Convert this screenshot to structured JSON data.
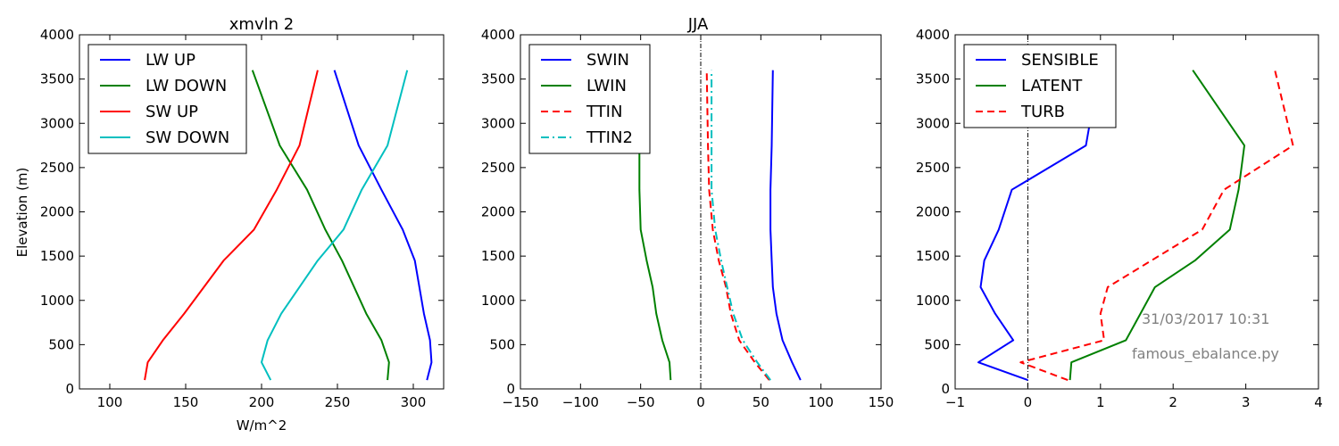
{
  "footer": {
    "timestamp": "31/03/2017 10:31",
    "script": "famous_ebalance.py"
  },
  "chart_data": [
    {
      "type": "line",
      "title": "xmvln 2",
      "xlabel": "W/m^2",
      "ylabel": "Elevation (m)",
      "xlim": [
        80,
        320
      ],
      "ylim": [
        0,
        4000
      ],
      "xticks": [
        100,
        150,
        200,
        250,
        300
      ],
      "yticks": [
        0,
        500,
        1000,
        1500,
        2000,
        2500,
        3000,
        3500,
        4000
      ],
      "legend": "top-left",
      "series": [
        {
          "name": "LW UP",
          "color": "#0000ff",
          "dash": "solid",
          "x": [
            309,
            312,
            311,
            307,
            301,
            293,
            279,
            264,
            248
          ],
          "y": [
            100,
            300,
            550,
            850,
            1450,
            1800,
            2250,
            2750,
            3600
          ]
        },
        {
          "name": "LW DOWN",
          "color": "#008000",
          "dash": "solid",
          "x": [
            283,
            284,
            279,
            269,
            253,
            242,
            230,
            212,
            194
          ],
          "y": [
            100,
            300,
            550,
            850,
            1450,
            1800,
            2250,
            2750,
            3600
          ]
        },
        {
          "name": "SW UP",
          "color": "#ff0000",
          "dash": "solid",
          "x": [
            123,
            125,
            135,
            149,
            175,
            195,
            210,
            225,
            237
          ],
          "y": [
            100,
            300,
            550,
            850,
            1450,
            1800,
            2250,
            2750,
            3600
          ]
        },
        {
          "name": "SW DOWN",
          "color": "#00bfbf",
          "dash": "solid",
          "x": [
            206,
            200,
            204,
            213,
            237,
            254,
            266,
            283,
            296
          ],
          "y": [
            100,
            300,
            550,
            850,
            1450,
            1800,
            2250,
            2750,
            3600
          ]
        }
      ]
    },
    {
      "type": "line",
      "title": "JJA",
      "xlabel": "",
      "ylabel": "",
      "xlim": [
        -150,
        150
      ],
      "ylim": [
        0,
        4000
      ],
      "xticks": [
        -150,
        -100,
        -50,
        0,
        50,
        100,
        150
      ],
      "xticklabels": [
        "−150",
        "−100",
        "−50",
        "0",
        "50",
        "100",
        "150"
      ],
      "yticks": [
        0,
        500,
        1000,
        1500,
        2000,
        2500,
        3000,
        3500,
        4000
      ],
      "zero_line": true,
      "legend": "top-left",
      "series": [
        {
          "name": "SWIN",
          "color": "#0000ff",
          "dash": "solid",
          "x": [
            83,
            76,
            68,
            63,
            60,
            59,
            58,
            58,
            59,
            60
          ],
          "y": [
            100,
            300,
            550,
            850,
            1150,
            1450,
            1800,
            2250,
            2750,
            3600
          ]
        },
        {
          "name": "LWIN",
          "color": "#008000",
          "dash": "solid",
          "x": [
            -25,
            -26,
            -32,
            -37,
            -40,
            -45,
            -50,
            -51,
            -51,
            -50
          ],
          "y": [
            100,
            300,
            550,
            850,
            1150,
            1450,
            1800,
            2250,
            2750,
            3600
          ]
        },
        {
          "name": "TTIN",
          "color": "#ff0000",
          "dash": "dashed",
          "x": [
            57,
            45,
            32,
            25,
            21,
            15,
            10,
            7,
            6,
            5
          ],
          "y": [
            100,
            300,
            550,
            850,
            1150,
            1450,
            1800,
            2250,
            2750,
            3600
          ]
        },
        {
          "name": "TTIN2",
          "color": "#00bfbf",
          "dash": "dashdot",
          "x": [
            58,
            47,
            35,
            27,
            22,
            17,
            12,
            9,
            9,
            9
          ],
          "y": [
            100,
            300,
            550,
            850,
            1150,
            1450,
            1800,
            2250,
            2750,
            3600
          ]
        }
      ]
    },
    {
      "type": "line",
      "title": "",
      "xlabel": "",
      "ylabel": "",
      "xlim": [
        -1,
        4
      ],
      "ylim": [
        0,
        4000
      ],
      "xticks": [
        -1,
        0,
        1,
        2,
        3,
        4
      ],
      "xticklabels": [
        "−1",
        "0",
        "1",
        "2",
        "3",
        "4"
      ],
      "yticks": [
        0,
        500,
        1000,
        1500,
        2000,
        2500,
        3000,
        3500,
        4000
      ],
      "zero_line": true,
      "legend": "top-left",
      "series": [
        {
          "name": "SENSIBLE",
          "color": "#0000ff",
          "dash": "solid",
          "x": [
            0,
            -0.68,
            -0.2,
            -0.45,
            -0.65,
            -0.6,
            -0.4,
            -0.22,
            0.8,
            0.98
          ],
          "y": [
            100,
            300,
            550,
            850,
            1150,
            1450,
            1800,
            2250,
            2750,
            3600
          ]
        },
        {
          "name": "LATENT",
          "color": "#008000",
          "dash": "solid",
          "x": [
            0.58,
            0.6,
            1.35,
            1.55,
            1.75,
            2.3,
            2.78,
            2.9,
            2.98,
            2.27
          ],
          "y": [
            100,
            300,
            550,
            850,
            1150,
            1450,
            1800,
            2250,
            2750,
            3600
          ]
        },
        {
          "name": "TURB",
          "color": "#ff0000",
          "dash": "dashed",
          "x": [
            0.55,
            -0.1,
            1.05,
            1.0,
            1.1,
            1.7,
            2.4,
            2.7,
            3.65,
            3.4
          ],
          "y": [
            100,
            300,
            550,
            850,
            1150,
            1450,
            1800,
            2250,
            2750,
            3600
          ]
        }
      ]
    }
  ]
}
